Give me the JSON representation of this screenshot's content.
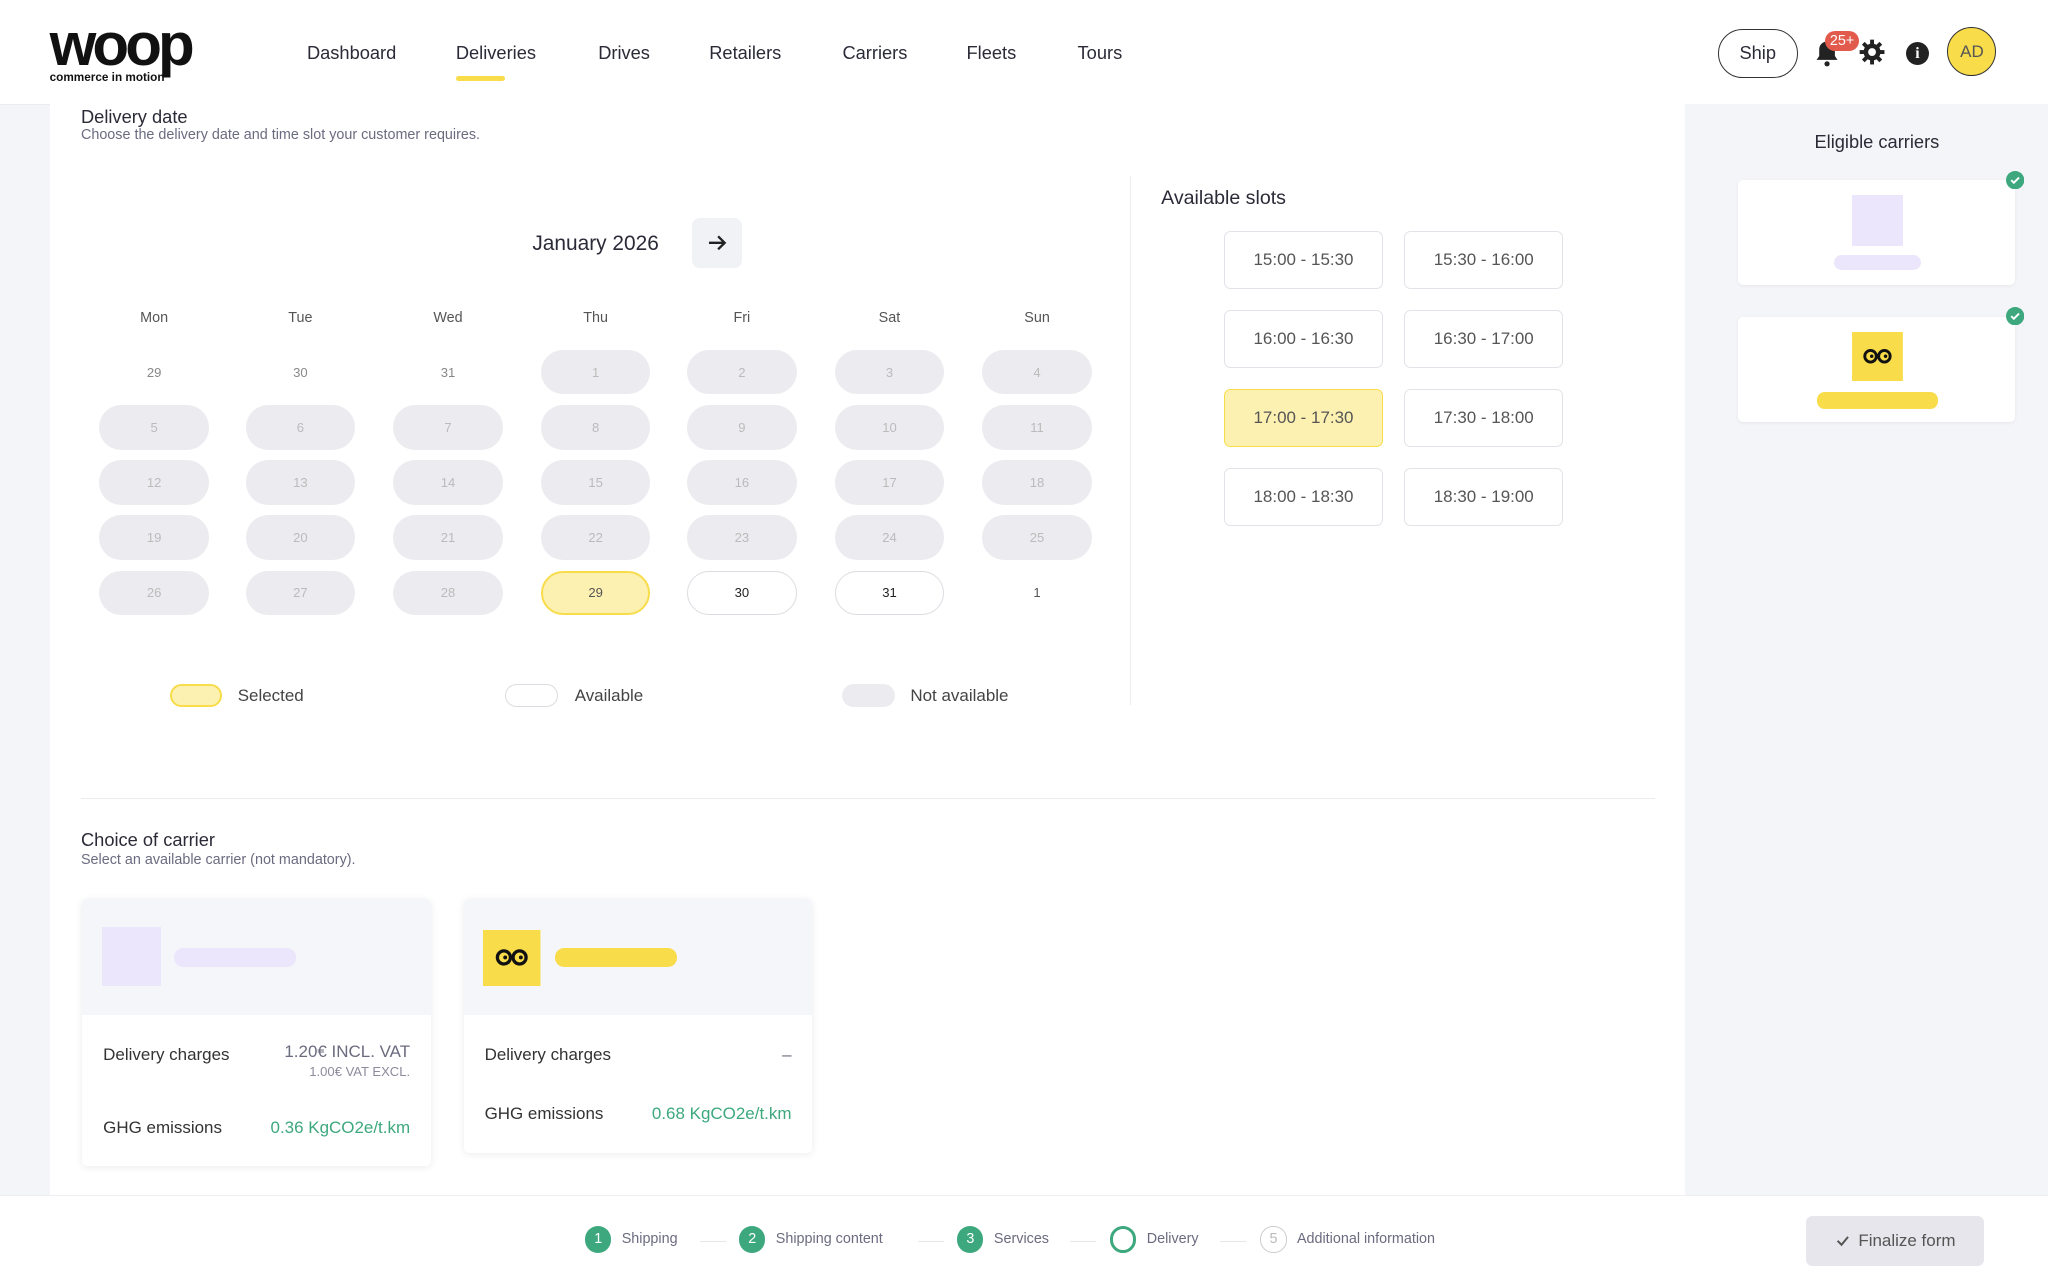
{
  "header": {
    "logo_text": "woop",
    "logo_tagline": "commerce in motion",
    "nav": [
      "Dashboard",
      "Deliveries",
      "Drives",
      "Retailers",
      "Carriers",
      "Fleets",
      "Tours"
    ],
    "active_nav": "Deliveries",
    "ship_label": "Ship",
    "notification_count": "25+",
    "avatar_initials": "AD"
  },
  "delivery_date": {
    "title": "Delivery date",
    "subtitle": "Choose the delivery date and time slot your customer requires.",
    "calendar": {
      "month": "January 2026",
      "weekdays": [
        "Mon",
        "Tue",
        "Wed",
        "Thu",
        "Fri",
        "Sat",
        "Sun"
      ],
      "weeks": [
        [
          {
            "d": "29",
            "s": "plain"
          },
          {
            "d": "30",
            "s": "plain"
          },
          {
            "d": "31",
            "s": "plain"
          },
          {
            "d": "1",
            "s": "na"
          },
          {
            "d": "2",
            "s": "na"
          },
          {
            "d": "3",
            "s": "na"
          },
          {
            "d": "4",
            "s": "na"
          }
        ],
        [
          {
            "d": "5",
            "s": "na"
          },
          {
            "d": "6",
            "s": "na"
          },
          {
            "d": "7",
            "s": "na"
          },
          {
            "d": "8",
            "s": "na"
          },
          {
            "d": "9",
            "s": "na"
          },
          {
            "d": "10",
            "s": "na"
          },
          {
            "d": "11",
            "s": "na"
          }
        ],
        [
          {
            "d": "12",
            "s": "na"
          },
          {
            "d": "13",
            "s": "na"
          },
          {
            "d": "14",
            "s": "na"
          },
          {
            "d": "15",
            "s": "na"
          },
          {
            "d": "16",
            "s": "na"
          },
          {
            "d": "17",
            "s": "na"
          },
          {
            "d": "18",
            "s": "na"
          }
        ],
        [
          {
            "d": "19",
            "s": "na"
          },
          {
            "d": "20",
            "s": "na"
          },
          {
            "d": "21",
            "s": "na"
          },
          {
            "d": "22",
            "s": "na"
          },
          {
            "d": "23",
            "s": "na"
          },
          {
            "d": "24",
            "s": "na"
          },
          {
            "d": "25",
            "s": "na"
          }
        ],
        [
          {
            "d": "26",
            "s": "na"
          },
          {
            "d": "27",
            "s": "na"
          },
          {
            "d": "28",
            "s": "na"
          },
          {
            "d": "29",
            "s": "sel"
          },
          {
            "d": "30",
            "s": "av"
          },
          {
            "d": "31",
            "s": "av"
          },
          {
            "d": "1",
            "s": "plain next"
          }
        ]
      ]
    },
    "legend": {
      "selected": "Selected",
      "available": "Available",
      "not_available": "Not available"
    },
    "slots_title": "Available slots",
    "slots": [
      "15:00 - 15:30",
      "15:30 - 16:00",
      "16:00 - 16:30",
      "16:30 - 17:00",
      "17:00 - 17:30",
      "17:30 - 18:00",
      "18:00 - 18:30",
      "18:30 - 19:00"
    ],
    "selected_slot": "17:00 - 17:30"
  },
  "carrier": {
    "title": "Choice of carrier",
    "subtitle": "Select an available carrier (not mandatory).",
    "cards": [
      {
        "charges_label": "Delivery charges",
        "charges_incl": "1.20€ INCL. VAT",
        "charges_excl": "1.00€ VAT EXCL.",
        "ghg_label": "GHG emissions",
        "ghg_value": "0.36 KgCO2e/t.km",
        "brand_color": "#ebe6fb"
      },
      {
        "charges_label": "Delivery charges",
        "charges_incl": "–",
        "charges_excl": "",
        "ghg_label": "GHG emissions",
        "ghg_value": "0.68 KgCO2e/t.km",
        "brand_color": "#f8dc4a"
      }
    ]
  },
  "sidebar": {
    "title": "Eligible carriers"
  },
  "footer": {
    "steps": [
      {
        "n": "1",
        "label": "Shipping"
      },
      {
        "n": "2",
        "label": "Shipping content"
      },
      {
        "n": "3",
        "label": "Services"
      },
      {
        "n": "",
        "label": "Delivery"
      },
      {
        "n": "5",
        "label": "Additional information"
      }
    ],
    "finalize_label": "Finalize form"
  }
}
